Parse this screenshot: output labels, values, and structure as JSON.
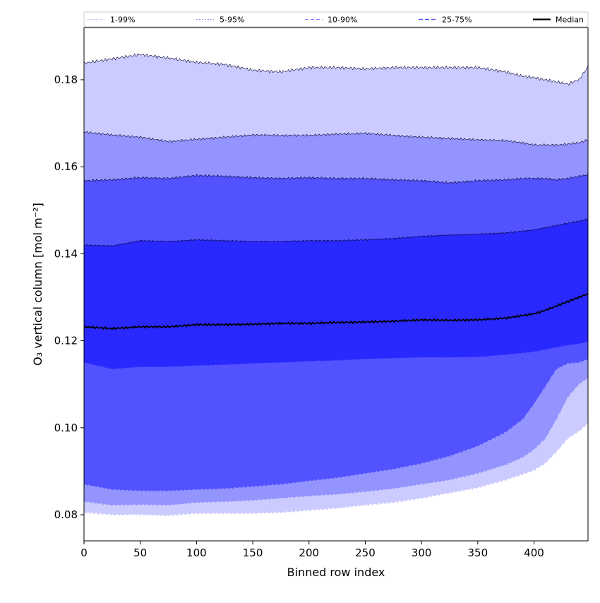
{
  "chart_data": {
    "type": "area",
    "title": "",
    "xlabel": "Binned row index",
    "ylabel": "O₃ vertical column [mol m⁻²]",
    "xlim": [
      0,
      448
    ],
    "ylim": [
      0.074,
      0.192
    ],
    "x_ticks": [
      0,
      50,
      100,
      150,
      200,
      250,
      300,
      350,
      400
    ],
    "y_ticks": [
      0.08,
      0.1,
      0.12,
      0.14,
      0.16,
      0.18
    ],
    "y_tick_labels": [
      "0.08",
      "0.10",
      "0.12",
      "0.14",
      "0.16",
      "0.18"
    ],
    "grid": false,
    "legend_placement": "top",
    "x_knots": [
      0,
      25,
      50,
      75,
      100,
      125,
      150,
      175,
      200,
      225,
      250,
      275,
      300,
      325,
      350,
      375,
      390,
      400,
      410,
      420,
      430,
      440,
      448
    ],
    "bands": [
      {
        "name": "1-99%",
        "color": "#cccbff",
        "lower": [
          0.0805,
          0.08,
          0.08,
          0.0798,
          0.0803,
          0.0803,
          0.0803,
          0.0805,
          0.081,
          0.0815,
          0.0822,
          0.0828,
          0.0838,
          0.085,
          0.0862,
          0.088,
          0.0893,
          0.0902,
          0.0918,
          0.0945,
          0.0975,
          0.0992,
          0.101
        ],
        "upper": [
          0.1838,
          0.1848,
          0.1858,
          0.185,
          0.184,
          0.1835,
          0.1822,
          0.1818,
          0.1828,
          0.1828,
          0.1825,
          0.1828,
          0.1828,
          0.1828,
          0.1828,
          0.1818,
          0.1808,
          0.1805,
          0.18,
          0.1795,
          0.179,
          0.18,
          0.183
        ]
      },
      {
        "name": "5-95%",
        "color": "#9494ff",
        "lower": [
          0.083,
          0.0822,
          0.0823,
          0.0822,
          0.0828,
          0.083,
          0.0833,
          0.0838,
          0.0843,
          0.0847,
          0.0853,
          0.086,
          0.087,
          0.088,
          0.0895,
          0.0915,
          0.0932,
          0.095,
          0.0975,
          0.102,
          0.107,
          0.11,
          0.1115
        ],
        "upper": [
          0.168,
          0.1673,
          0.1668,
          0.1658,
          0.1663,
          0.1668,
          0.1673,
          0.1672,
          0.1672,
          0.1675,
          0.1677,
          0.1672,
          0.1668,
          0.1665,
          0.1662,
          0.166,
          0.1655,
          0.165,
          0.165,
          0.165,
          0.1652,
          0.1655,
          0.1662
        ]
      },
      {
        "name": "10-90%",
        "color": "#5252ff",
        "lower": [
          0.087,
          0.0858,
          0.0855,
          0.0855,
          0.0858,
          0.086,
          0.0865,
          0.087,
          0.0878,
          0.0885,
          0.0895,
          0.0905,
          0.0918,
          0.0935,
          0.0958,
          0.099,
          0.102,
          0.1055,
          0.1095,
          0.1135,
          0.1148,
          0.115,
          0.1158
        ],
        "upper": [
          0.1568,
          0.157,
          0.1575,
          0.1573,
          0.158,
          0.1578,
          0.1575,
          0.1573,
          0.1575,
          0.1573,
          0.1573,
          0.157,
          0.1568,
          0.1563,
          0.1568,
          0.157,
          0.1573,
          0.1573,
          0.1573,
          0.157,
          0.1573,
          0.1578,
          0.1582
        ]
      },
      {
        "name": "25-75%",
        "color": "#2828ff",
        "lower": [
          0.115,
          0.1135,
          0.114,
          0.114,
          0.1143,
          0.1145,
          0.1148,
          0.115,
          0.1153,
          0.1155,
          0.1158,
          0.116,
          0.1162,
          0.1162,
          0.1163,
          0.1168,
          0.1172,
          0.1175,
          0.118,
          0.1185,
          0.119,
          0.1193,
          0.1198
        ],
        "upper": [
          0.142,
          0.1418,
          0.143,
          0.1428,
          0.1432,
          0.143,
          0.1428,
          0.1428,
          0.143,
          0.143,
          0.1432,
          0.1435,
          0.144,
          0.1443,
          0.1445,
          0.1448,
          0.1452,
          0.1455,
          0.146,
          0.1465,
          0.147,
          0.1475,
          0.148
        ]
      }
    ],
    "median": {
      "name": "Median",
      "color": "#000000",
      "values": [
        0.1232,
        0.1228,
        0.1232,
        0.1232,
        0.1237,
        0.1237,
        0.1238,
        0.124,
        0.124,
        0.1242,
        0.1243,
        0.1245,
        0.1248,
        0.1247,
        0.1248,
        0.1252,
        0.1258,
        0.1262,
        0.127,
        0.128,
        0.129,
        0.13,
        0.1308
      ]
    },
    "legend": [
      {
        "label": "1-99%",
        "line_color": "#cccbff",
        "dash": "4,2",
        "width": 1
      },
      {
        "label": "5-95%",
        "line_color": "#9494ff",
        "dash": "2,2",
        "width": 1
      },
      {
        "label": "10-90%",
        "line_color": "#8080ff",
        "dash": "5,3",
        "width": 1.2
      },
      {
        "label": "25-75%",
        "line_color": "#5252ff",
        "dash": "6,3",
        "width": 1.5
      },
      {
        "label": "Median",
        "line_color": "#000000",
        "dash": "",
        "width": 2.2
      }
    ]
  }
}
